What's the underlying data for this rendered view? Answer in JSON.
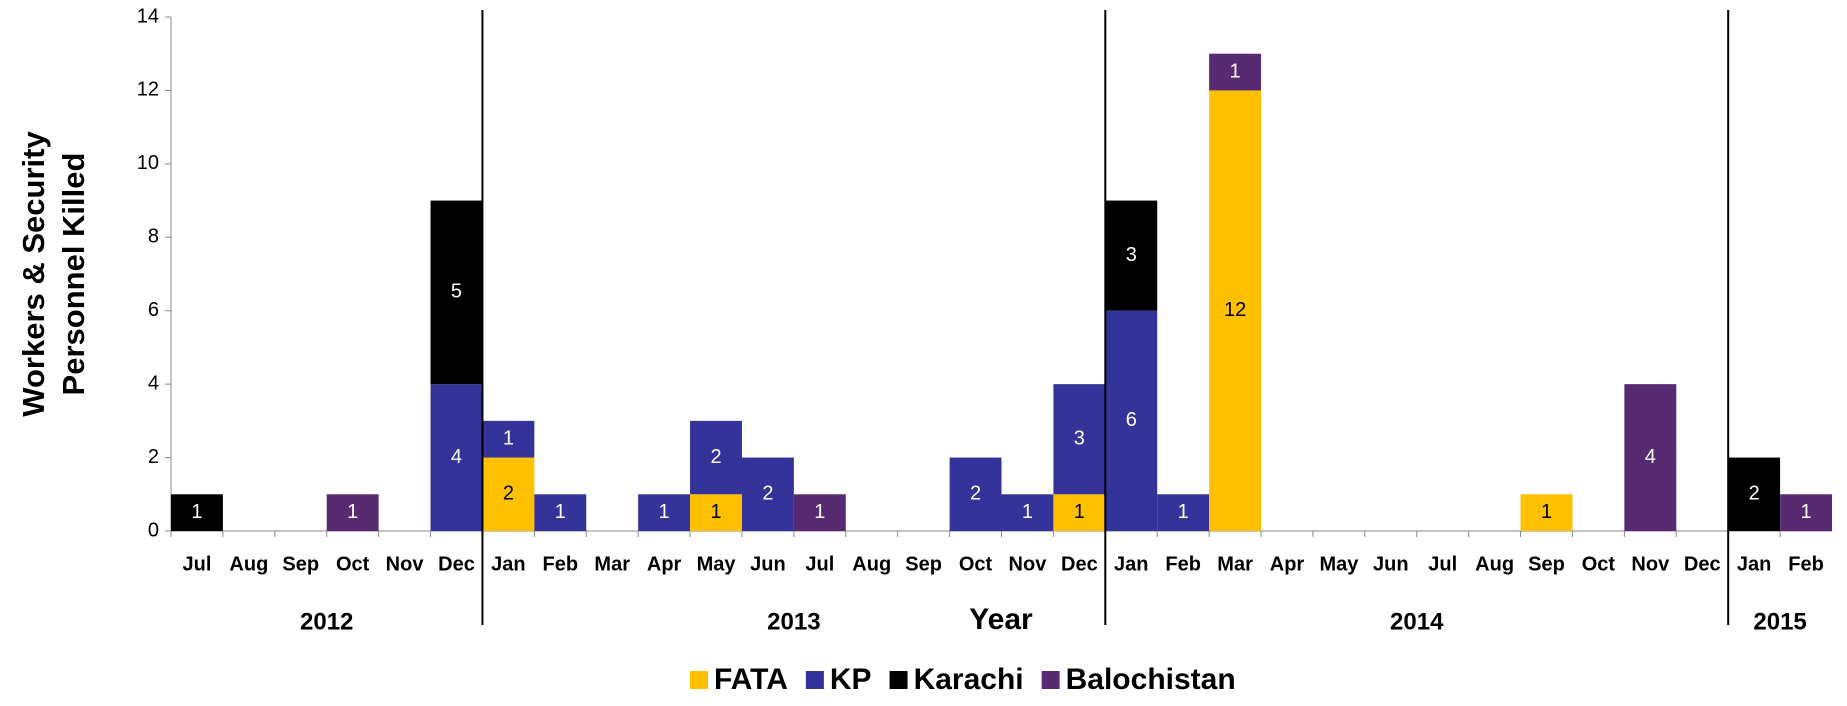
{
  "chart_data": {
    "type": "stacked_bar",
    "ylabel": [
      "Workers & Security",
      "Personnel Killed"
    ],
    "xlabel": "Year",
    "categories": [
      "Jul",
      "Aug",
      "Sep",
      "Oct",
      "Nov",
      "Dec",
      "Jan",
      "Feb",
      "Mar",
      "Apr",
      "May",
      "Jun",
      "Jul",
      "Aug",
      "Sep",
      "Oct",
      "Nov",
      "Dec",
      "Jan",
      "Feb",
      "Mar",
      "Apr",
      "May",
      "Jun",
      "Jul",
      "Aug",
      "Sep",
      "Oct",
      "Nov",
      "Dec",
      "Jan",
      "Feb"
    ],
    "groups": [
      {
        "label": "2012",
        "start": 0,
        "end": 5
      },
      {
        "label": "2013",
        "start": 6,
        "end": 17
      },
      {
        "label": "2014",
        "start": 18,
        "end": 29
      },
      {
        "label": "2015",
        "start": 30,
        "end": 31
      }
    ],
    "series": [
      {
        "name": "FATA",
        "color": "#FFC000",
        "label_color": "#000000",
        "values": [
          null,
          null,
          null,
          null,
          null,
          null,
          2,
          null,
          null,
          null,
          1,
          null,
          null,
          null,
          null,
          null,
          null,
          1,
          null,
          null,
          12,
          null,
          null,
          null,
          null,
          null,
          1,
          null,
          null,
          null,
          null,
          null
        ]
      },
      {
        "name": "KP",
        "color": "#333399",
        "label_color": "#ffffff",
        "values": [
          null,
          null,
          null,
          null,
          null,
          4,
          1,
          1,
          null,
          1,
          2,
          2,
          null,
          null,
          null,
          2,
          1,
          3,
          6,
          1,
          null,
          null,
          null,
          null,
          null,
          null,
          null,
          null,
          null,
          null,
          null,
          null
        ]
      },
      {
        "name": "Karachi",
        "color": "#000000",
        "label_color": "#ffffff",
        "values": [
          1,
          null,
          null,
          null,
          null,
          5,
          null,
          null,
          null,
          null,
          null,
          null,
          null,
          null,
          null,
          null,
          null,
          null,
          3,
          null,
          null,
          null,
          null,
          null,
          null,
          null,
          null,
          null,
          null,
          null,
          2,
          null
        ]
      },
      {
        "name": "Balochistan",
        "color": "#582A72",
        "label_color": "#ffffff",
        "values": [
          null,
          null,
          null,
          1,
          null,
          null,
          null,
          null,
          null,
          null,
          null,
          null,
          1,
          null,
          null,
          null,
          null,
          null,
          null,
          null,
          1,
          null,
          null,
          null,
          null,
          null,
          null,
          null,
          4,
          null,
          null,
          1
        ]
      }
    ],
    "ylim": [
      0,
      14
    ],
    "yticks": [
      0,
      2,
      4,
      6,
      8,
      10,
      12,
      14
    ],
    "grid": false,
    "legend": "bottom"
  }
}
